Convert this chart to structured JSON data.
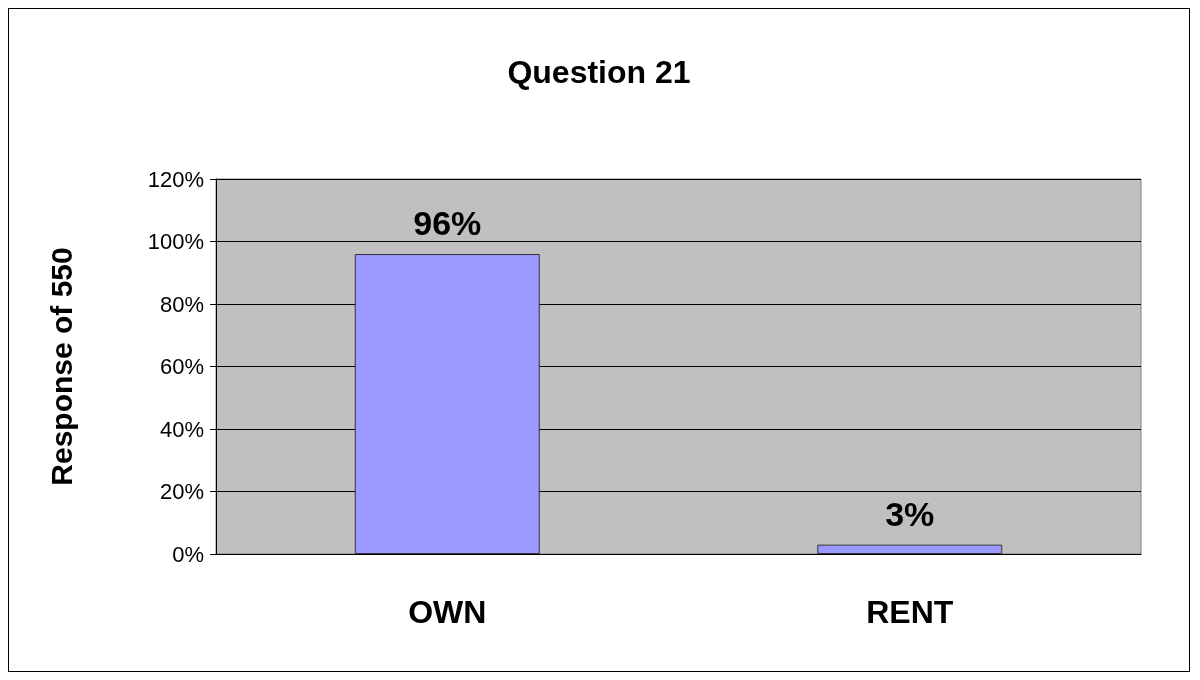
{
  "chart_data": {
    "type": "bar",
    "title": "Question 21",
    "ylabel": "Response of 550",
    "categories": [
      "OWN",
      "RENT"
    ],
    "values": [
      96,
      3
    ],
    "value_labels": [
      "96%",
      "3%"
    ],
    "color": "#9999ff",
    "ylim": [
      0,
      120
    ],
    "yticks": [
      {
        "value": 0,
        "label": "0%"
      },
      {
        "value": 20,
        "label": "20%"
      },
      {
        "value": 40,
        "label": "40%"
      },
      {
        "value": 60,
        "label": "60%"
      },
      {
        "value": 80,
        "label": "80%"
      },
      {
        "value": 100,
        "label": "100%"
      },
      {
        "value": 120,
        "label": "120%"
      }
    ],
    "grid": "y"
  }
}
